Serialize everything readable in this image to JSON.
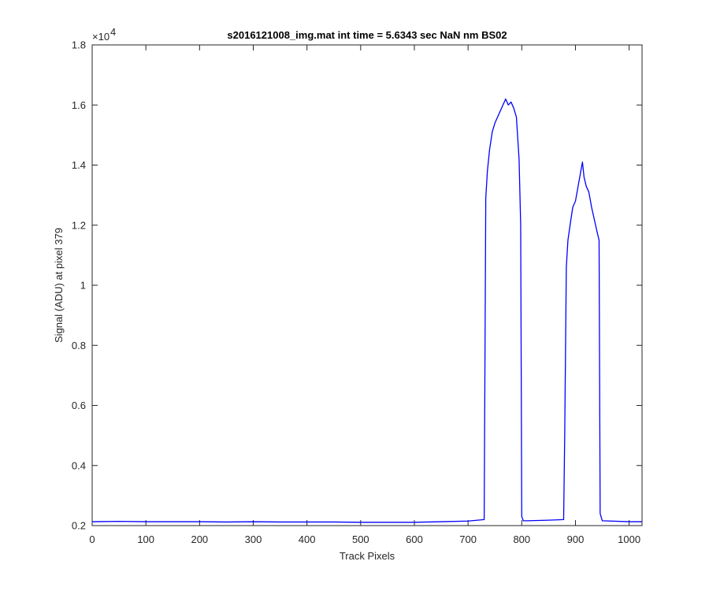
{
  "chart_data": {
    "type": "line",
    "title": "s2016121008_img.mat int time = 5.6343 sec  NaN nm BS02",
    "xlabel": "Track Pixels",
    "ylabel": "Signal (ADU) at pixel 379",
    "y_exponent_label": "×10",
    "y_exponent_power": "4",
    "xlim": [
      0,
      1024
    ],
    "ylim": [
      0.2,
      1.8
    ],
    "y_scale_note": "values shown ×10^4",
    "grid": false,
    "legend": "none",
    "line_color": "#0000ff",
    "x_ticks": [
      0,
      100,
      200,
      300,
      400,
      500,
      600,
      700,
      800,
      900,
      1000
    ],
    "x_tick_labels": [
      "0",
      "100",
      "200",
      "300",
      "400",
      "500",
      "600",
      "700",
      "800",
      "900",
      "1000"
    ],
    "y_ticks": [
      0.2,
      0.4,
      0.6,
      0.8,
      1.0,
      1.2,
      1.4,
      1.6,
      1.8
    ],
    "y_tick_labels": [
      "0.2",
      "0.4",
      "0.6",
      "0.8",
      "1",
      "1.2",
      "1.4",
      "1.6",
      "1.8"
    ],
    "series": [
      {
        "x": [
          0,
          50,
          100,
          150,
          200,
          250,
          300,
          350,
          400,
          450,
          500,
          550,
          600,
          650,
          700,
          730,
          733,
          736,
          740,
          745,
          750,
          755,
          760,
          765,
          770,
          775,
          780,
          785,
          790,
          795,
          798,
          800,
          803,
          810,
          850,
          878,
          880,
          883,
          886,
          890,
          895,
          900,
          905,
          910,
          913,
          916,
          920,
          925,
          930,
          935,
          940,
          944,
          946,
          950,
          1000,
          1024
        ],
        "y": [
          0.213,
          0.214,
          0.213,
          0.213,
          0.213,
          0.212,
          0.213,
          0.212,
          0.212,
          0.212,
          0.211,
          0.211,
          0.211,
          0.213,
          0.215,
          0.22,
          1.29,
          1.38,
          1.45,
          1.51,
          1.54,
          1.56,
          1.58,
          1.6,
          1.62,
          1.6,
          1.61,
          1.59,
          1.56,
          1.42,
          1.2,
          0.23,
          0.216,
          0.216,
          0.218,
          0.22,
          0.5,
          1.06,
          1.15,
          1.2,
          1.26,
          1.28,
          1.33,
          1.38,
          1.41,
          1.36,
          1.33,
          1.31,
          1.26,
          1.22,
          1.18,
          1.15,
          0.24,
          0.216,
          0.213,
          0.213
        ]
      }
    ]
  }
}
